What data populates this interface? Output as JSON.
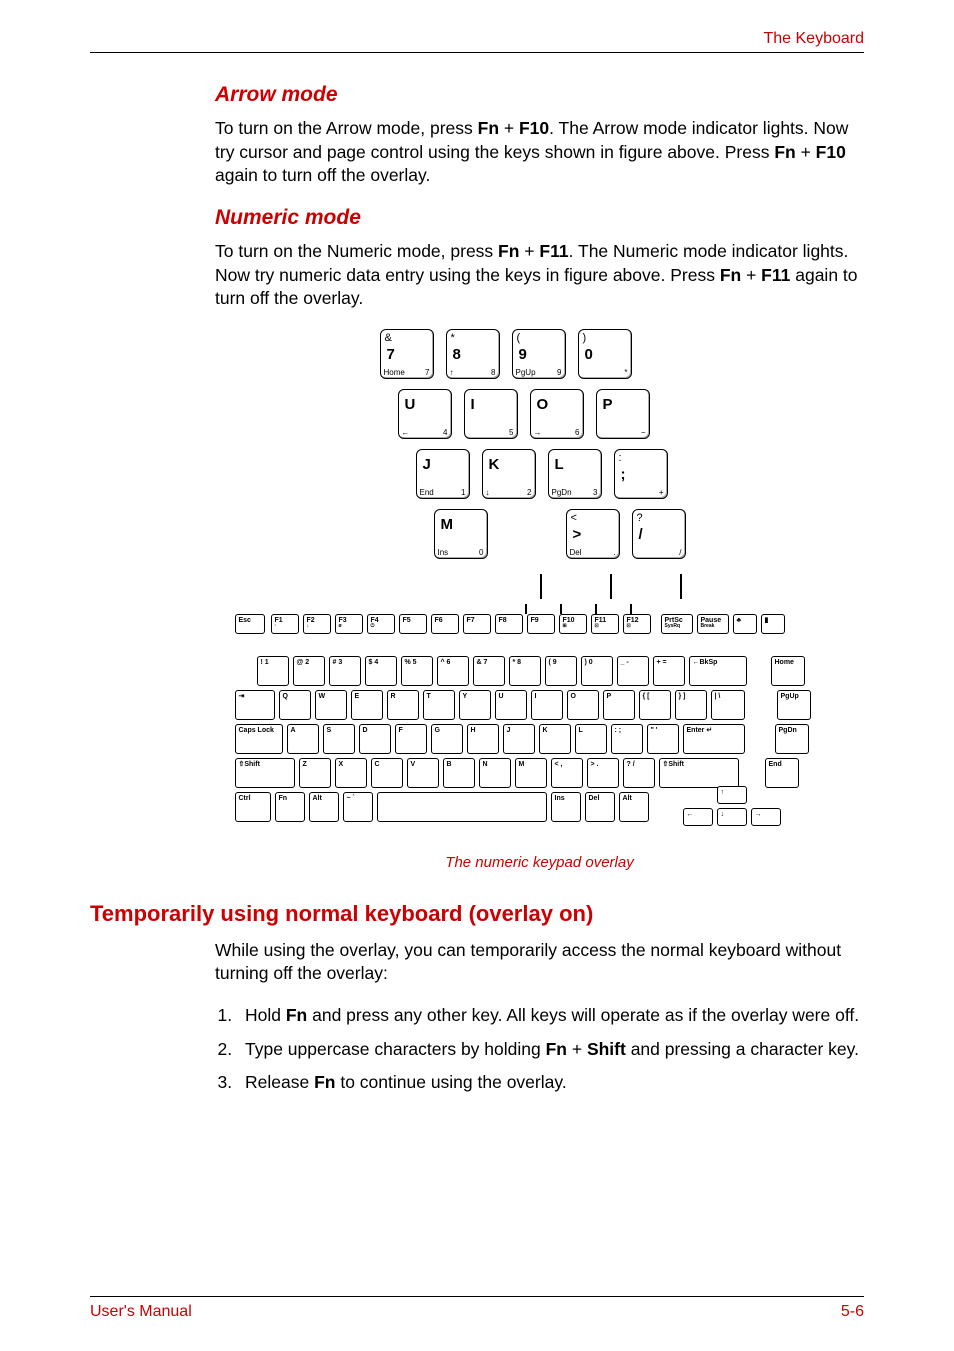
{
  "header": {
    "section_title": "The Keyboard"
  },
  "sections": {
    "arrow_mode": {
      "heading": "Arrow mode",
      "text_pre": "To turn on the Arrow mode, press ",
      "key1": "Fn",
      "plus": " + ",
      "key2": "F10",
      "text_mid": ". The Arrow mode indicator lights. Now try cursor and page control using the keys shown in figure above. Press ",
      "key3": "Fn",
      "key4": "F10",
      "text_post": " again to turn off the overlay."
    },
    "numeric_mode": {
      "heading": "Numeric mode",
      "text_pre": "To turn on the Numeric mode, press ",
      "key1": "Fn",
      "plus": " + ",
      "key2": "F11",
      "text_mid": ". The Numeric mode indicator lights. Now try numeric data entry using the keys in figure above. Press ",
      "key3": "Fn",
      "key4": "F11",
      "text_post": " again to turn off the overlay."
    },
    "temporarily": {
      "heading": "Temporarily using normal keyboard (overlay on)",
      "intro": "While using the overlay, you can temporarily access the normal keyboard without turning off the overlay:",
      "item1_pre": "Hold ",
      "item1_key": "Fn",
      "item1_post": " and press any other key. All keys will operate as if the overlay were off.",
      "item2_pre": "Type uppercase characters by holding ",
      "item2_k1": "Fn",
      "item2_plus": " + ",
      "item2_k2": "Shift",
      "item2_post": " and pressing a character key.",
      "item3_pre": "Release ",
      "item3_key": "Fn",
      "item3_post": " to continue using the overlay."
    }
  },
  "figure": {
    "caption": "The numeric keypad overlay",
    "detail_keys": {
      "r1": [
        {
          "top": "&",
          "main": "7",
          "sub_l": "Home",
          "sub_r": "7"
        },
        {
          "top": "*",
          "main": "8",
          "sub_l": "↑",
          "sub_r": "8"
        },
        {
          "top": "(",
          "main": "9",
          "sub_l": "PgUp",
          "sub_r": "9"
        },
        {
          "top": ")",
          "main": "0",
          "sub_l": "",
          "sub_r": "*"
        }
      ],
      "r2": [
        {
          "top": "",
          "main": "U",
          "sub_l": "←",
          "sub_r": "4"
        },
        {
          "top": "",
          "main": "I",
          "sub_l": "",
          "sub_r": "5"
        },
        {
          "top": "",
          "main": "O",
          "sub_l": "→",
          "sub_r": "6"
        },
        {
          "top": "",
          "main": "P",
          "sub_l": "",
          "sub_r": "−"
        }
      ],
      "r3": [
        {
          "top": "",
          "main": "J",
          "sub_l": "End",
          "sub_r": "1"
        },
        {
          "top": "",
          "main": "K",
          "sub_l": "↓",
          "sub_r": "2"
        },
        {
          "top": "",
          "main": "L",
          "sub_l": "PgDn",
          "sub_r": "3"
        },
        {
          "top": ":",
          "main": ";",
          "sub_l": "",
          "sub_r": "+"
        }
      ],
      "r4": [
        {
          "top": "",
          "main": "M",
          "sub_l": "Ins",
          "sub_r": "0"
        },
        null,
        {
          "top": "<",
          "main": ">",
          "sub_l": "Del",
          "sub_r": "."
        },
        {
          "top": "?",
          "main": "/",
          "sub_l": "",
          "sub_r": "/"
        }
      ]
    },
    "full_keyboard": {
      "row0": [
        "Esc",
        "F1",
        "F2",
        "F3",
        "F4",
        "F5",
        "F6",
        "F7",
        "F8",
        "F9",
        "F10",
        "F11",
        "F12",
        "PrtSc",
        "Pause",
        "",
        ""
      ],
      "row0_sub": [
        "",
        "·",
        "↓",
        "ø",
        "⏻",
        "",
        "",
        "",
        "",
        "",
        "⊞",
        "⊡",
        "⊡",
        "SysRq",
        "Break",
        "",
        ""
      ],
      "row1": [
        "!  1",
        "@ 2",
        "# 3",
        "$ 4",
        "% 5",
        "^ 6",
        "& 7",
        "* 8",
        "( 9",
        ") 0",
        "_ -",
        "+ =",
        "←BkSp",
        "Home"
      ],
      "row2": [
        "⇥",
        "Q",
        "W",
        "E",
        "R",
        "T",
        "Y",
        "U",
        "I",
        "O",
        "P",
        "{ [",
        "} ]",
        "| \\",
        "PgUp"
      ],
      "row3": [
        "Caps Lock",
        "A",
        "S",
        "D",
        "F",
        "G",
        "H",
        "J",
        "K",
        "L",
        ": ;",
        "\" '",
        "Enter ↵",
        "PgDn"
      ],
      "row4": [
        "⇧Shift",
        "Z",
        "X",
        "C",
        "V",
        "B",
        "N",
        "M",
        "< ,",
        "> .",
        "? /",
        "⇧Shift",
        "End"
      ],
      "row5": [
        "Ctrl",
        "Fn",
        "Alt",
        "~ `",
        "",
        "",
        "Ins",
        "Del",
        "Alt",
        "↑",
        ""
      ],
      "row5b": [
        "←",
        "↓",
        "→"
      ]
    }
  },
  "footer": {
    "left": "User's Manual",
    "right": "5-6"
  },
  "colors": {
    "brand": "#cc0000",
    "text": "#000000",
    "bg": "#ffffff"
  }
}
